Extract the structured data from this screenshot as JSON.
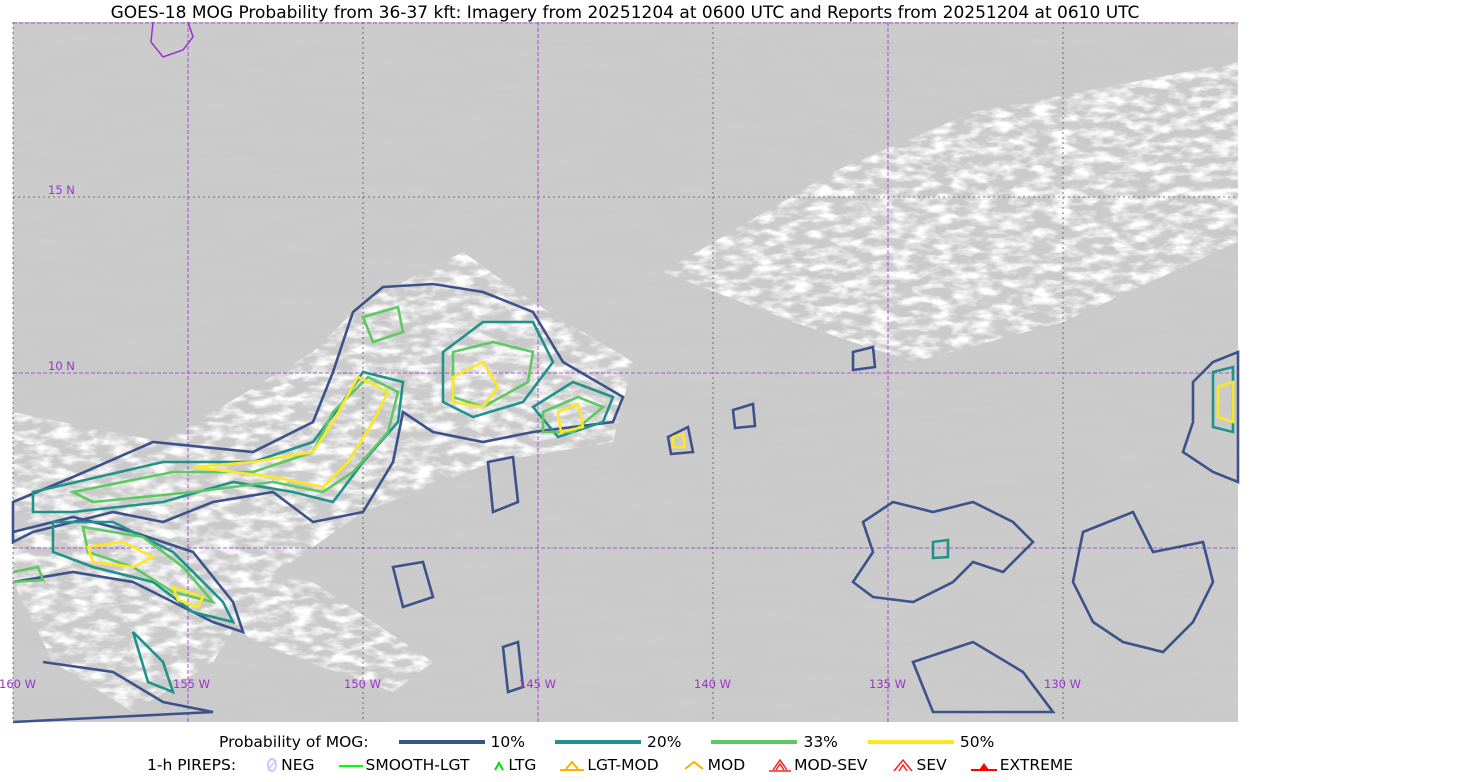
{
  "title": "GOES-18 MOG Probability from 36-37 kft: Imagery from 20251204 at 0600 UTC and Reports from 20251204 at 0610 UTC",
  "map": {
    "longitude_labels": [
      "160 W",
      "155 W",
      "150 W",
      "145 W",
      "140 W",
      "135 W",
      "130 W"
    ],
    "latitude_labels": [
      "15 N",
      "10 N"
    ],
    "gridline_color": "#9933cc"
  },
  "legend": {
    "probability_label": "Probability of MOG:",
    "levels": [
      {
        "label": "10%",
        "color": "#3b528b"
      },
      {
        "label": "20%",
        "color": "#21918c"
      },
      {
        "label": "33%",
        "color": "#5ec962"
      },
      {
        "label": "50%",
        "color": "#fde725"
      }
    ],
    "pireps_label": "1-h PIREPS:",
    "pireps": [
      {
        "label": "NEG",
        "icon": "neg-icon",
        "color": "#c8c8ff"
      },
      {
        "label": "SMOOTH-LGT",
        "icon": "smooth-lgt-icon",
        "color": "#00ff00"
      },
      {
        "label": "LTG",
        "icon": "ltg-icon",
        "color": "#00dd00"
      },
      {
        "label": "LGT-MOD",
        "icon": "lgt-mod-icon",
        "color": "#ffb000"
      },
      {
        "label": "MOD",
        "icon": "mod-icon",
        "color": "#ffb000"
      },
      {
        "label": "MOD-SEV",
        "icon": "mod-sev-icon",
        "color": "#ff2020"
      },
      {
        "label": "SEV",
        "icon": "sev-icon",
        "color": "#ff2020"
      },
      {
        "label": "EXTREME",
        "icon": "extreme-icon",
        "color": "#ff0000"
      }
    ]
  }
}
